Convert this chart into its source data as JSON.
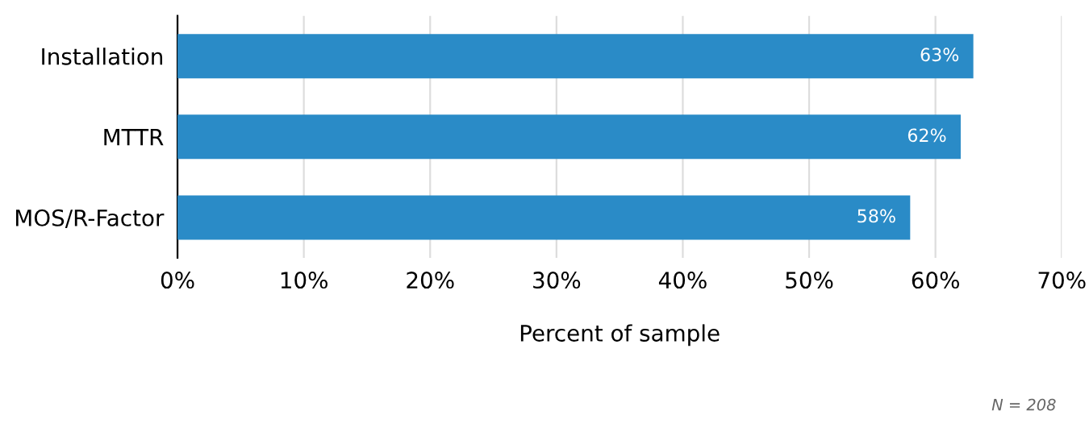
{
  "chart_data": {
    "type": "bar",
    "orientation": "horizontal",
    "xlabel": "Percent of sample",
    "categories": [
      "Installation",
      "MTTR",
      "MOS/R-Factor"
    ],
    "values": [
      63,
      62,
      58
    ],
    "value_labels": [
      "63%",
      "62%",
      "58%"
    ],
    "color": "#2a8bc7",
    "xlim": [
      0,
      70
    ],
    "xticks": [
      {
        "value": 0,
        "label": "0%"
      },
      {
        "value": 10,
        "label": "10%"
      },
      {
        "value": 20,
        "label": "20%"
      },
      {
        "value": 30,
        "label": "30%"
      },
      {
        "value": 40,
        "label": "40%"
      },
      {
        "value": 50,
        "label": "50%"
      },
      {
        "value": 60,
        "label": "60%"
      },
      {
        "value": 70,
        "label": "70%"
      }
    ],
    "grid": "x",
    "legend": false,
    "annotations": [
      "N = 208"
    ]
  }
}
